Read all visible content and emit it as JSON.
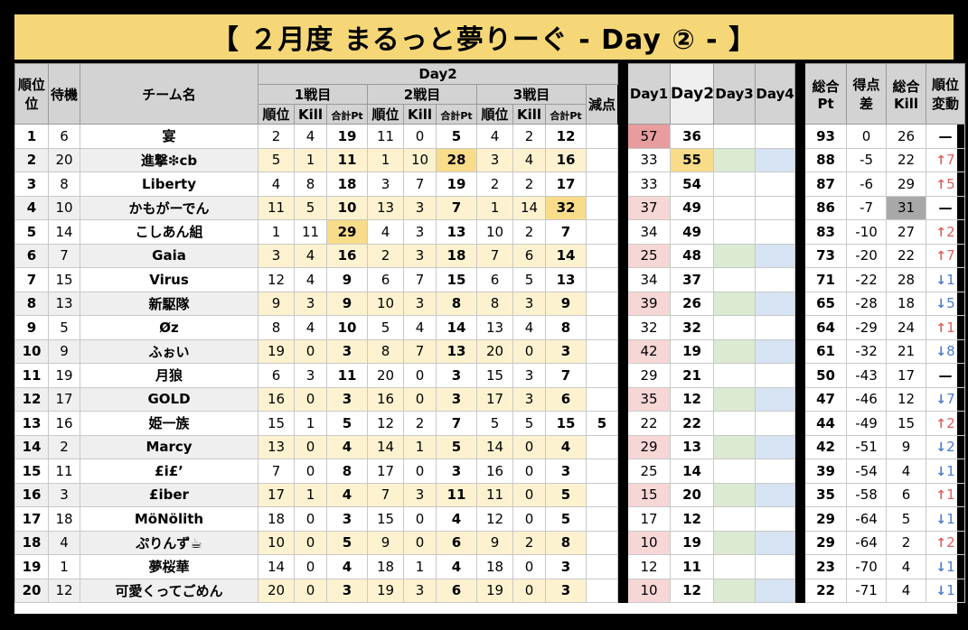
{
  "title": "【 ２月度 まるっと夢りーぐ - Day ② - 】",
  "headers": {
    "rank": "順位",
    "wait": "待機",
    "team": "チーム名",
    "day2": "Day2",
    "game1": "1戦目",
    "game2": "2戦目",
    "game3": "3戦目",
    "sub_rank": "順位",
    "sub_kill": "Kill",
    "sub_total": "合計Pt",
    "penalty": "減点",
    "day1": "Day1",
    "day2col": "Day2",
    "day3": "Day3",
    "day4": "Day4",
    "total": "総合",
    "total_unit": "Pt",
    "diff": "得点",
    "diff2": "差",
    "total_kill": "総合",
    "total_kill2": "Kill",
    "change": "順位",
    "change2": "変動"
  },
  "rows": [
    {
      "rank": "1",
      "wait": "6",
      "team": "宴",
      "g1r": "2",
      "g1k": "4",
      "g1p": "19",
      "g2r": "11",
      "g2k": "0",
      "g2p": "5",
      "g3r": "4",
      "g3k": "2",
      "g3p": "12",
      "pen": "",
      "day1": "57",
      "day2": "36",
      "total": "93",
      "diff": "0",
      "kill": "26",
      "dir": "none",
      "chg": "—"
    },
    {
      "rank": "2",
      "wait": "20",
      "team": "進撃❇︎cb",
      "g1r": "5",
      "g1k": "1",
      "g1p": "11",
      "g2r": "1",
      "g2k": "10",
      "g2p": "28",
      "g3r": "3",
      "g3k": "4",
      "g3p": "16",
      "pen": "",
      "day1": "33",
      "day2": "55",
      "total": "88",
      "diff": "-5",
      "kill": "22",
      "dir": "up",
      "chg": "7"
    },
    {
      "rank": "3",
      "wait": "8",
      "team": "Liberty",
      "g1r": "4",
      "g1k": "8",
      "g1p": "18",
      "g2r": "3",
      "g2k": "7",
      "g2p": "19",
      "g3r": "2",
      "g3k": "2",
      "g3p": "17",
      "pen": "",
      "day1": "33",
      "day2": "54",
      "total": "87",
      "diff": "-6",
      "kill": "29",
      "dir": "up",
      "chg": "5"
    },
    {
      "rank": "4",
      "wait": "10",
      "team": "かもがーでん",
      "g1r": "11",
      "g1k": "5",
      "g1p": "10",
      "g2r": "13",
      "g2k": "3",
      "g2p": "7",
      "g3r": "1",
      "g3k": "14",
      "g3p": "32",
      "pen": "",
      "day1": "37",
      "day2": "49",
      "total": "86",
      "diff": "-7",
      "kill": "31",
      "dir": "none",
      "chg": "—"
    },
    {
      "rank": "5",
      "wait": "14",
      "team": "こしあん組",
      "g1r": "1",
      "g1k": "11",
      "g1p": "29",
      "g2r": "4",
      "g2k": "3",
      "g2p": "13",
      "g3r": "10",
      "g3k": "2",
      "g3p": "7",
      "pen": "",
      "day1": "34",
      "day2": "49",
      "total": "83",
      "diff": "-10",
      "kill": "27",
      "dir": "up",
      "chg": "2"
    },
    {
      "rank": "6",
      "wait": "7",
      "team": "Gaia",
      "g1r": "3",
      "g1k": "4",
      "g1p": "16",
      "g2r": "2",
      "g2k": "3",
      "g2p": "18",
      "g3r": "7",
      "g3k": "6",
      "g3p": "14",
      "pen": "",
      "day1": "25",
      "day2": "48",
      "total": "73",
      "diff": "-20",
      "kill": "22",
      "dir": "up",
      "chg": "7"
    },
    {
      "rank": "7",
      "wait": "15",
      "team": "Virus",
      "g1r": "12",
      "g1k": "4",
      "g1p": "9",
      "g2r": "6",
      "g2k": "7",
      "g2p": "15",
      "g3r": "6",
      "g3k": "5",
      "g3p": "13",
      "pen": "",
      "day1": "34",
      "day2": "37",
      "total": "71",
      "diff": "-22",
      "kill": "28",
      "dir": "down",
      "chg": "1"
    },
    {
      "rank": "8",
      "wait": "13",
      "team": "新駆隊",
      "g1r": "9",
      "g1k": "3",
      "g1p": "9",
      "g2r": "10",
      "g2k": "3",
      "g2p": "8",
      "g3r": "8",
      "g3k": "3",
      "g3p": "9",
      "pen": "",
      "day1": "39",
      "day2": "26",
      "total": "65",
      "diff": "-28",
      "kill": "18",
      "dir": "down",
      "chg": "5"
    },
    {
      "rank": "9",
      "wait": "5",
      "team": "Øz",
      "g1r": "8",
      "g1k": "4",
      "g1p": "10",
      "g2r": "5",
      "g2k": "4",
      "g2p": "14",
      "g3r": "13",
      "g3k": "4",
      "g3p": "8",
      "pen": "",
      "day1": "32",
      "day2": "32",
      "total": "64",
      "diff": "-29",
      "kill": "24",
      "dir": "up",
      "chg": "1"
    },
    {
      "rank": "10",
      "wait": "9",
      "team": "ふぉい",
      "g1r": "19",
      "g1k": "0",
      "g1p": "3",
      "g2r": "8",
      "g2k": "7",
      "g2p": "13",
      "g3r": "20",
      "g3k": "0",
      "g3p": "3",
      "pen": "",
      "day1": "42",
      "day2": "19",
      "total": "61",
      "diff": "-32",
      "kill": "21",
      "dir": "down",
      "chg": "8"
    },
    {
      "rank": "11",
      "wait": "19",
      "team": "月狼",
      "g1r": "6",
      "g1k": "3",
      "g1p": "11",
      "g2r": "20",
      "g2k": "0",
      "g2p": "3",
      "g3r": "15",
      "g3k": "3",
      "g3p": "7",
      "pen": "",
      "day1": "29",
      "day2": "21",
      "total": "50",
      "diff": "-43",
      "kill": "17",
      "dir": "none",
      "chg": "—"
    },
    {
      "rank": "12",
      "wait": "17",
      "team": "GOLD",
      "g1r": "16",
      "g1k": "0",
      "g1p": "3",
      "g2r": "16",
      "g2k": "0",
      "g2p": "3",
      "g3r": "17",
      "g3k": "3",
      "g3p": "6",
      "pen": "",
      "day1": "35",
      "day2": "12",
      "total": "47",
      "diff": "-46",
      "kill": "12",
      "dir": "down",
      "chg": "7"
    },
    {
      "rank": "13",
      "wait": "16",
      "team": "姫一族",
      "g1r": "15",
      "g1k": "1",
      "g1p": "5",
      "g2r": "12",
      "g2k": "2",
      "g2p": "7",
      "g3r": "5",
      "g3k": "5",
      "g3p": "15",
      "pen": "5",
      "day1": "22",
      "day2": "22",
      "total": "44",
      "diff": "-49",
      "kill": "15",
      "dir": "up",
      "chg": "2"
    },
    {
      "rank": "14",
      "wait": "2",
      "team": "Marcy",
      "g1r": "13",
      "g1k": "0",
      "g1p": "4",
      "g2r": "14",
      "g2k": "1",
      "g2p": "5",
      "g3r": "14",
      "g3k": "0",
      "g3p": "4",
      "pen": "",
      "day1": "29",
      "day2": "13",
      "total": "42",
      "diff": "-51",
      "kill": "9",
      "dir": "down",
      "chg": "2"
    },
    {
      "rank": "15",
      "wait": "11",
      "team": "£i£’",
      "g1r": "7",
      "g1k": "0",
      "g1p": "8",
      "g2r": "17",
      "g2k": "0",
      "g2p": "3",
      "g3r": "16",
      "g3k": "0",
      "g3p": "3",
      "pen": "",
      "day1": "25",
      "day2": "14",
      "total": "39",
      "diff": "-54",
      "kill": "4",
      "dir": "down",
      "chg": "1"
    },
    {
      "rank": "16",
      "wait": "3",
      "team": "£iber",
      "g1r": "17",
      "g1k": "1",
      "g1p": "4",
      "g2r": "7",
      "g2k": "3",
      "g2p": "11",
      "g3r": "11",
      "g3k": "0",
      "g3p": "5",
      "pen": "",
      "day1": "15",
      "day2": "20",
      "total": "35",
      "diff": "-58",
      "kill": "6",
      "dir": "up",
      "chg": "1"
    },
    {
      "rank": "17",
      "wait": "18",
      "team": "MöNölith",
      "g1r": "18",
      "g1k": "0",
      "g1p": "3",
      "g2r": "15",
      "g2k": "0",
      "g2p": "4",
      "g3r": "12",
      "g3k": "0",
      "g3p": "5",
      "pen": "",
      "day1": "17",
      "day2": "12",
      "total": "29",
      "diff": "-64",
      "kill": "5",
      "dir": "down",
      "chg": "1"
    },
    {
      "rank": "18",
      "wait": "4",
      "team": "ぷりんず☕",
      "g1r": "10",
      "g1k": "0",
      "g1p": "5",
      "g2r": "9",
      "g2k": "0",
      "g2p": "6",
      "g3r": "9",
      "g3k": "2",
      "g3p": "8",
      "pen": "",
      "day1": "10",
      "day2": "19",
      "total": "29",
      "diff": "-64",
      "kill": "2",
      "dir": "up",
      "chg": "2"
    },
    {
      "rank": "19",
      "wait": "1",
      "team": "夢桜華",
      "g1r": "14",
      "g1k": "0",
      "g1p": "4",
      "g2r": "18",
      "g2k": "1",
      "g2p": "4",
      "g3r": "18",
      "g3k": "0",
      "g3p": "3",
      "pen": "",
      "day1": "12",
      "day2": "11",
      "total": "23",
      "diff": "-70",
      "kill": "4",
      "dir": "down",
      "chg": "1"
    },
    {
      "rank": "20",
      "wait": "12",
      "team": "可愛くってごめん",
      "g1r": "20",
      "g1k": "0",
      "g1p": "3",
      "g2r": "19",
      "g2k": "3",
      "g2p": "6",
      "g3r": "19",
      "g3k": "0",
      "g3p": "3",
      "pen": "",
      "day1": "10",
      "day2": "12",
      "total": "22",
      "diff": "-71",
      "kill": "4",
      "dir": "down",
      "chg": "1"
    }
  ]
}
